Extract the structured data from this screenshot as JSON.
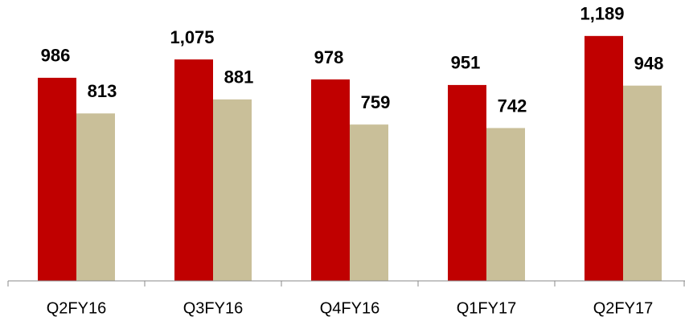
{
  "chart_data": {
    "type": "bar",
    "categories": [
      "Q2FY16",
      "Q3FY16",
      "Q4FY16",
      "Q1FY17",
      "Q2FY17"
    ],
    "series": [
      {
        "color": "#c00000",
        "values": [
          986,
          1075,
          978,
          951,
          1189
        ],
        "value_labels": [
          "986",
          "1,075",
          "978",
          "951",
          "1,189"
        ]
      },
      {
        "color": "#c9bf99",
        "values": [
          813,
          881,
          759,
          742,
          948
        ],
        "value_labels": [
          "813",
          "881",
          "759",
          "742",
          "948"
        ]
      }
    ],
    "ylim": [
      0,
      1200
    ]
  }
}
